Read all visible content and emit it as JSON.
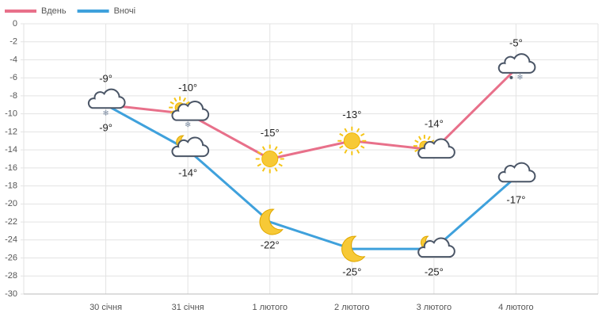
{
  "chart_data": {
    "type": "line",
    "categories": [
      "30 січня",
      "31 січня",
      "1 лютого",
      "2 лютого",
      "3 лютого",
      "4 лютого"
    ],
    "series": [
      {
        "name": "Вдень",
        "color": "#e8708a",
        "values": [
          -9,
          -10,
          -15,
          -13,
          -14,
          -5
        ],
        "value_labels": [
          "-9°",
          "-10°",
          "-15°",
          "-13°",
          "-14°",
          "-5°"
        ]
      },
      {
        "name": "Вночі",
        "color": "#3fa1dc",
        "values": [
          -9,
          -14,
          -22,
          -25,
          -25,
          -17
        ],
        "value_labels": [
          "-9°",
          "-14°",
          "-22°",
          "-25°",
          "-25°",
          "-17°"
        ]
      }
    ],
    "ylim": [
      -30,
      0
    ],
    "yticks": [
      0,
      -2,
      -4,
      -6,
      -8,
      -10,
      -12,
      -14,
      -16,
      -18,
      -20,
      -22,
      -24,
      -26,
      -28,
      -30
    ],
    "grid": true,
    "legend": "top-left"
  }
}
